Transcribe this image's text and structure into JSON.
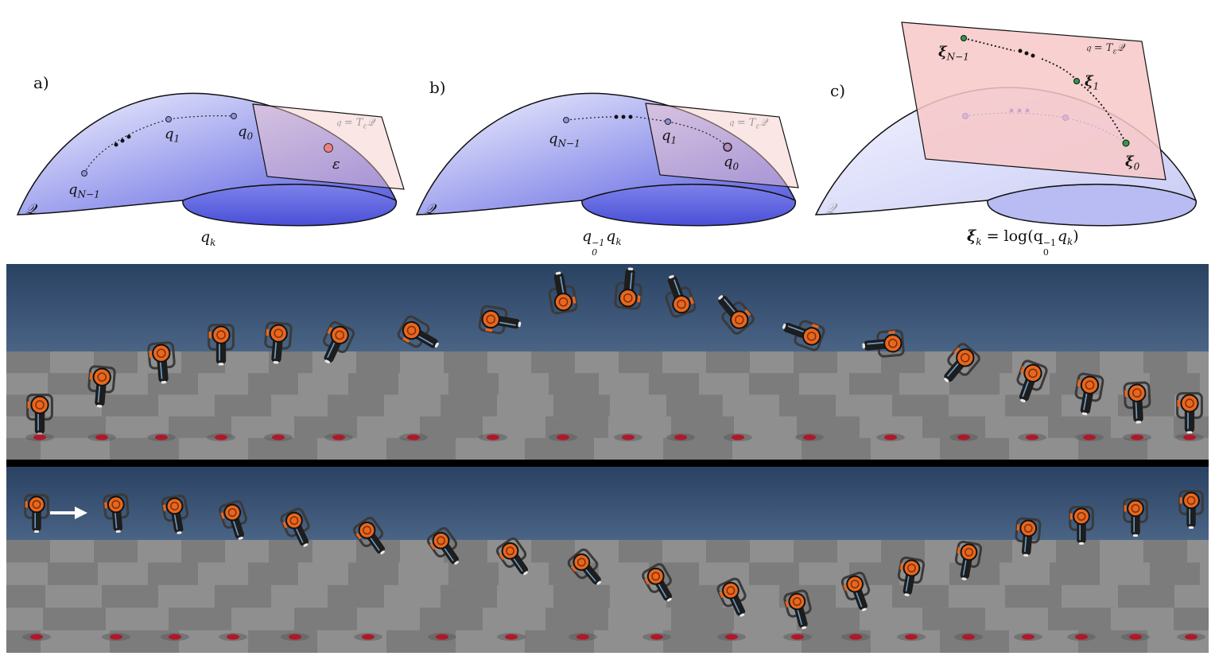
{
  "figure": {
    "panels": [
      {
        "letter": "a)",
        "labels": {
          "q_nm1": "q",
          "q_nm1_sub": "N−1",
          "q1": "q",
          "q1_sub": "1",
          "q0": "q",
          "q0_sub": "0",
          "eps": "ε",
          "plane": "𝔮 = T",
          "plane_sub": "ε",
          "plane_tail": "𝒬",
          "manifold": "𝒬"
        },
        "caption": "q",
        "caption_sub": "k"
      },
      {
        "letter": "b)",
        "labels": {
          "q_nm1": "q",
          "q_nm1_sub": "N−1",
          "q1": "q",
          "q1_sub": "1",
          "q0": "q",
          "q0_sub": "0",
          "plane": "𝔮 = T",
          "plane_sub": "ε",
          "plane_tail": "𝒬",
          "manifold": "𝒬"
        },
        "caption_pre": "q",
        "caption_sub0": "0",
        "caption_sup": "−1",
        "caption_post": "q",
        "caption_subk": "k"
      },
      {
        "letter": "c)",
        "labels": {
          "xi_nm1": "ξ",
          "xi_nm1_sub": "N−1",
          "xi1": "ξ",
          "xi1_sub": "1",
          "xi0": "ξ",
          "xi0_sub": "0",
          "plane": "𝔮 = T",
          "plane_sub": "ε",
          "plane_tail": "𝒬",
          "manifold": "𝒬"
        },
        "caption_xi": "ξ",
        "caption_k": "k",
        "caption_mid": " = log(q",
        "caption_sub0": "0",
        "caption_sup": "−1",
        "caption_q": "q",
        "caption_subk": "k",
        "caption_end": ")"
      }
    ],
    "colors": {
      "manifold_top": "#f3f4ff",
      "manifold_bottom": "#5a5ee0",
      "plane_fill": "#f7c8c8",
      "point_blue": "#8a92e6",
      "point_red": "#f08080",
      "point_green": "#2e9a4a",
      "sky": "#2d4866",
      "floor_light": "#8f8f8f",
      "floor_dark": "#6d6d6d",
      "robot_orange": "#e8671e",
      "robot_dark": "#1d1d1d",
      "marker_red": "#b0182a"
    },
    "strips": [
      {
        "name": "top-sequence",
        "frames": 19
      },
      {
        "name": "bottom-sequence",
        "frames": 17
      }
    ]
  }
}
